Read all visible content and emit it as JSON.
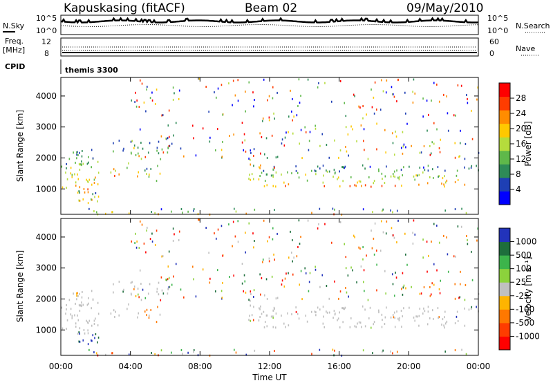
{
  "header": {
    "station": "Kapuskasing (fitACF)",
    "beam": "Beam 02",
    "date": "09/May/2010"
  },
  "summary_panels": {
    "nsky_label": "N.Sky",
    "nsky_ticks": [
      "10^5",
      "10^0"
    ],
    "nsearch_label": "N.Search",
    "nsearch_ticks": [
      "10^5",
      "10^0"
    ],
    "freq_label_line1": "Freq.",
    "freq_label_line2": "[MHz]",
    "freq_ticks": [
      "12",
      "8"
    ],
    "nave_label": "Nave",
    "nave_ticks": [
      "60",
      "0"
    ],
    "cpid_label": "CPID",
    "cpid_value": "themis 3300"
  },
  "colors": {
    "power_scale": [
      "#0000ff",
      "#1e3fb4",
      "#2e8b57",
      "#5fb84a",
      "#b5dc3c",
      "#ffc800",
      "#ff8c00",
      "#ff3c00",
      "#ff0000"
    ],
    "velocity_scale": [
      "#2233bb",
      "#1e6e3c",
      "#3cb44b",
      "#8cd23c",
      "#c0c0c0",
      "#ffb400",
      "#ff7800",
      "#ff3c00",
      "#ff0000"
    ],
    "axis": "#000000"
  },
  "chart_data": [
    {
      "type": "heatmap",
      "title": "Power",
      "xlabel": "Time UT",
      "ylabel": "Slant Range [km]",
      "x_ticks": [
        "00:00",
        "04:00",
        "08:00",
        "12:00",
        "16:00",
        "20:00",
        "00:00"
      ],
      "y_ticks": [
        1000,
        2000,
        3000,
        4000
      ],
      "ylim": [
        180,
        4600
      ],
      "colorbar_label": "Power [dB]",
      "colorbar_ticks": [
        "4",
        "8",
        "12",
        "16",
        "20",
        "24",
        "28"
      ],
      "range_dB": [
        0,
        30
      ]
    },
    {
      "type": "heatmap",
      "title": "Velocity",
      "xlabel": "Time UT",
      "ylabel": "Slant Range [km]",
      "x_ticks": [
        "00:00",
        "04:00",
        "08:00",
        "12:00",
        "16:00",
        "20:00",
        "00:00"
      ],
      "y_ticks": [
        1000,
        2000,
        3000,
        4000
      ],
      "ylim": [
        180,
        4600
      ],
      "colorbar_label": "Velocity [m s⁻¹]",
      "colorbar_ticks": [
        "1000",
        "500",
        "100",
        "25",
        "-25",
        "-100",
        "-500",
        "-1000"
      ]
    }
  ],
  "xaxis_title": "Time UT"
}
